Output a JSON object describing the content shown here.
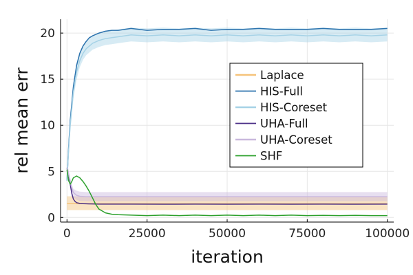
{
  "chart_data": {
    "type": "line",
    "title": "",
    "xlabel": "iteration",
    "ylabel": "rel mean err",
    "xlim": [
      -2000,
      102000
    ],
    "ylim": [
      -0.5,
      21.5
    ],
    "x_ticks": [
      0,
      25000,
      50000,
      75000,
      100000
    ],
    "x_tick_labels": [
      "0",
      "25000",
      "50000",
      "75000",
      "100000"
    ],
    "y_ticks": [
      0,
      5,
      10,
      15,
      20
    ],
    "y_tick_labels": [
      "0",
      "5",
      "10",
      "15",
      "20"
    ],
    "grid": true,
    "legend_position": "center-right",
    "series": [
      {
        "name": "Laplace",
        "color": "#f5c37a",
        "x": [
          0,
          100000
        ],
        "values": [
          1.5,
          1.5
        ],
        "band_lower": [
          0.8,
          0.8
        ],
        "band_upper": [
          2.3,
          2.3
        ]
      },
      {
        "name": "HIS-Full",
        "color": "#2b72ad",
        "x": [
          0,
          500,
          1000,
          2000,
          3000,
          4000,
          5000,
          6000,
          7000,
          8000,
          10000,
          12000,
          14000,
          16000,
          18000,
          20000,
          25000,
          30000,
          35000,
          40000,
          45000,
          50000,
          55000,
          60000,
          65000,
          70000,
          75000,
          80000,
          85000,
          90000,
          95000,
          100000
        ],
        "values": [
          4.0,
          7.5,
          10.5,
          14.2,
          16.5,
          17.8,
          18.6,
          19.1,
          19.5,
          19.7,
          20.0,
          20.2,
          20.3,
          20.3,
          20.4,
          20.5,
          20.3,
          20.4,
          20.4,
          20.5,
          20.3,
          20.4,
          20.4,
          20.5,
          20.4,
          20.4,
          20.4,
          20.5,
          20.4,
          20.4,
          20.4,
          20.5
        ]
      },
      {
        "name": "HIS-Coreset",
        "color": "#a6d2e6",
        "x": [
          0,
          500,
          1000,
          2000,
          3000,
          4000,
          5000,
          6000,
          7000,
          8000,
          10000,
          12000,
          14000,
          16000,
          18000,
          20000,
          25000,
          30000,
          35000,
          40000,
          45000,
          50000,
          55000,
          60000,
          65000,
          70000,
          75000,
          80000,
          85000,
          90000,
          95000,
          100000
        ],
        "values": [
          4.0,
          7.2,
          10.0,
          13.6,
          15.8,
          17.0,
          17.8,
          18.3,
          18.6,
          18.9,
          19.2,
          19.4,
          19.5,
          19.6,
          19.7,
          19.8,
          19.7,
          19.8,
          19.7,
          19.8,
          19.7,
          19.8,
          19.7,
          19.8,
          19.7,
          19.8,
          19.7,
          19.8,
          19.7,
          19.8,
          19.7,
          19.8
        ],
        "band_lower": [
          3.6,
          6.5,
          9.3,
          12.9,
          15.0,
          16.3,
          17.1,
          17.6,
          17.9,
          18.2,
          18.5,
          18.7,
          18.8,
          18.9,
          19.0,
          19.1,
          19.0,
          19.1,
          19.0,
          19.1,
          19.0,
          19.1,
          19.0,
          19.1,
          19.0,
          19.1,
          19.0,
          19.1,
          19.0,
          19.1,
          19.0,
          19.1
        ],
        "band_upper": [
          4.4,
          8.0,
          10.8,
          14.3,
          16.6,
          17.8,
          18.6,
          19.1,
          19.4,
          19.7,
          20.0,
          20.2,
          20.3,
          20.4,
          20.5,
          20.6,
          20.5,
          20.6,
          20.5,
          20.6,
          20.5,
          20.6,
          20.5,
          20.6,
          20.5,
          20.6,
          20.5,
          20.6,
          20.5,
          20.6,
          20.5,
          20.6
        ]
      },
      {
        "name": "UHA-Full",
        "color": "#4b2f87",
        "x": [
          0,
          500,
          1000,
          1500,
          2000,
          2500,
          3000,
          4000,
          5000,
          6000,
          8000,
          10000,
          20000,
          30000,
          40000,
          50000,
          60000,
          70000,
          80000,
          90000,
          100000
        ],
        "values": [
          5.4,
          4.6,
          3.6,
          2.6,
          2.0,
          1.75,
          1.6,
          1.52,
          1.5,
          1.48,
          1.47,
          1.45,
          1.45,
          1.44,
          1.45,
          1.44,
          1.45,
          1.44,
          1.45,
          1.44,
          1.45
        ]
      },
      {
        "name": "UHA-Coreset",
        "color": "#c9b8dd",
        "x": [
          0,
          500,
          1000,
          1500,
          2000,
          3000,
          4000,
          6000,
          10000,
          20000,
          40000,
          60000,
          80000,
          100000
        ],
        "values": [
          5.4,
          4.7,
          3.9,
          3.2,
          2.7,
          2.4,
          2.3,
          2.25,
          2.25,
          2.25,
          2.25,
          2.25,
          2.25,
          2.25
        ],
        "band_lower": [
          5.0,
          4.2,
          3.4,
          2.7,
          2.2,
          1.9,
          1.8,
          1.75,
          1.75,
          1.75,
          1.75,
          1.75,
          1.75,
          1.75
        ],
        "band_upper": [
          5.8,
          5.2,
          4.3,
          3.6,
          3.1,
          2.9,
          2.8,
          2.75,
          2.75,
          2.75,
          2.75,
          2.75,
          2.75,
          2.75
        ]
      },
      {
        "name": "SHF",
        "color": "#2ca02c",
        "x": [
          0,
          500,
          1000,
          1500,
          2000,
          3000,
          4000,
          5000,
          6000,
          7000,
          8000,
          9000,
          10000,
          11000,
          12000,
          14000,
          16000,
          20000,
          25000,
          30000,
          35000,
          40000,
          45000,
          50000,
          55000,
          60000,
          65000,
          70000,
          75000,
          80000,
          85000,
          90000,
          95000,
          100000
        ],
        "values": [
          5.2,
          4.0,
          3.6,
          3.9,
          4.3,
          4.5,
          4.3,
          3.9,
          3.4,
          2.8,
          2.1,
          1.4,
          0.9,
          0.7,
          0.5,
          0.35,
          0.3,
          0.25,
          0.2,
          0.25,
          0.2,
          0.25,
          0.2,
          0.25,
          0.2,
          0.25,
          0.2,
          0.25,
          0.2,
          0.22,
          0.2,
          0.22,
          0.2,
          0.2
        ]
      }
    ]
  }
}
